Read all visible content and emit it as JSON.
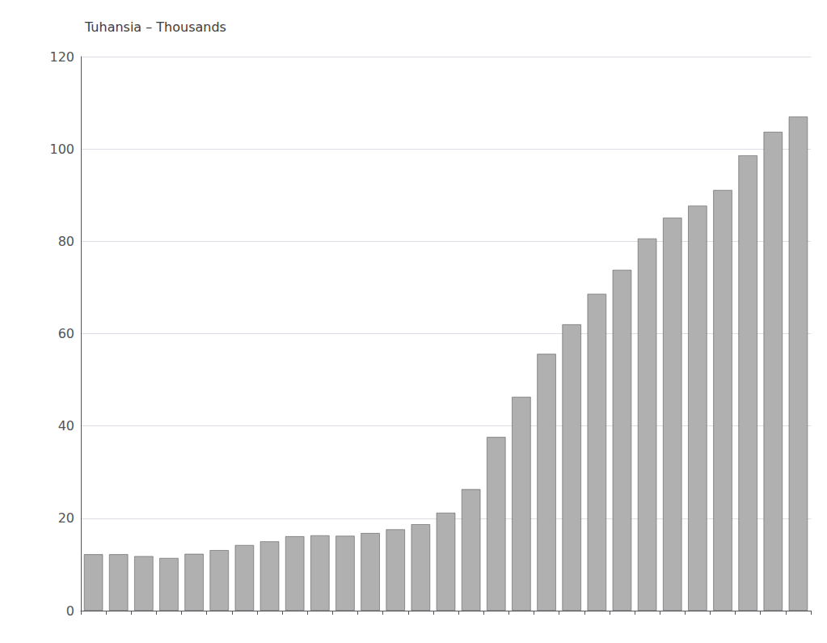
{
  "chart_data": {
    "type": "bar",
    "title": "Tuhansia – Thousands",
    "categories": [
      null,
      null,
      null,
      null,
      null,
      null,
      null,
      null,
      null,
      null,
      null,
      null,
      null,
      null,
      null,
      null,
      null,
      null,
      null,
      null,
      null,
      null,
      null,
      null,
      null,
      null,
      null,
      null,
      null
    ],
    "values": [
      12.2,
      12.2,
      11.8,
      11.4,
      12.3,
      13.1,
      14.2,
      15.0,
      16.1,
      16.3,
      16.2,
      16.8,
      17.6,
      18.7,
      21.2,
      26.3,
      37.6,
      46.3,
      55.6,
      62.0,
      68.6,
      73.8,
      80.6,
      85.1,
      87.7,
      91.1,
      98.6,
      103.7,
      107.0
    ],
    "color": "#b0b0b0",
    "ylim": [
      0,
      120
    ],
    "yticks": [
      0,
      20,
      40,
      60,
      80,
      100,
      120
    ],
    "grid": true,
    "tick_labels": "y"
  }
}
